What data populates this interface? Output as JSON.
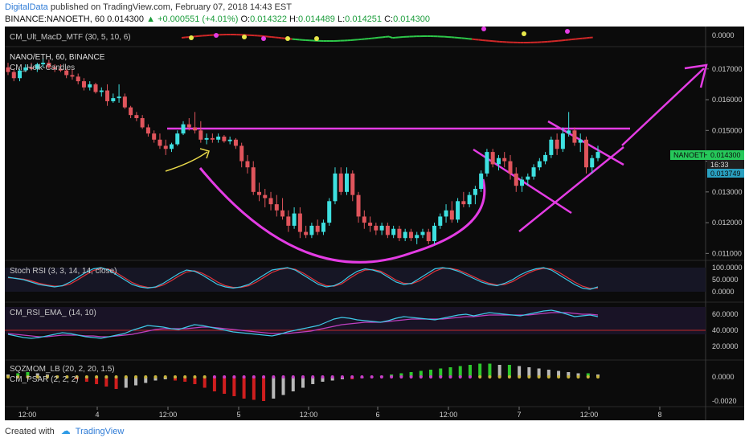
{
  "header": {
    "author": "DigitalData",
    "published": " published on TradingView.com, February 07, 2018 14:43 EST",
    "symbol": "BINANCE:NANOETH, 60",
    "last": "0.014300",
    "change_arrow": "▲",
    "change": "+0.000551 (+4.01%)",
    "o_label": "O:",
    "o_value": "0.014322",
    "h_label": "H:",
    "h_value": "0.014489",
    "l_label": "L:",
    "l_value": "0.014251",
    "c_label": "C:",
    "c_value": "0.014300"
  },
  "footer": {
    "created_with": "Created with",
    "brand": "TradingView"
  },
  "colors": {
    "background": "#0b0b0b",
    "candle_up": "#3ee0e0",
    "candle_down": "#e0555c",
    "drawing": "#e43ce4",
    "arrow_yellow": "#e8d84a",
    "stoch_k": "#3ec8e6",
    "stoch_d": "#e0343c",
    "rsi_line": "#3ec8e6",
    "rsi_ema": "#c040c0",
    "price_label": "#26c85a"
  },
  "panes": {
    "macd": {
      "label": "CM_Ult_MacD_MTF (30, 5, 10, 6)",
      "axis_ticks": [
        "0.0000"
      ]
    },
    "price": {
      "label": "NANO/ETH, 60, BINANCE",
      "sublabel": "CM_Heik-Candles",
      "axis_ticks": [
        "0.017000",
        "0.016000",
        "0.015000",
        "0.014000",
        "0.013000",
        "0.012000",
        "0.011000"
      ],
      "price_tag": "NANOETH",
      "price_tag_value": "0.014300",
      "countdown": "16:33",
      "level_tag": "0.013749"
    },
    "stoch": {
      "label": "Stoch RSI (3, 3, 14, 14, close)",
      "axis_ticks": [
        "100.0000",
        "50.0000",
        "0.0000"
      ]
    },
    "rsi": {
      "label": "CM_RSI_EMA_ (14, 10)",
      "axis_ticks": [
        "60.0000",
        "40.0000",
        "20.0000"
      ]
    },
    "sqz": {
      "label": "SQZMOM_LB (20, 2, 20, 1.5)",
      "sublabel": "CM_PSAR (2, 2, 2)",
      "axis_ticks": [
        "0.0000",
        "-0.0020"
      ]
    }
  },
  "time_axis": [
    "12:00",
    "4",
    "12:00",
    "5",
    "12:00",
    "6",
    "12:00",
    "7",
    "12:00",
    "8"
  ],
  "chart_data": {
    "type": "candlestick",
    "symbol": "NANO/ETH",
    "interval": "60",
    "exchange": "BINANCE",
    "ylim": [
      0.0108,
      0.0177
    ],
    "candles": [
      [
        0.01705,
        0.0172,
        0.0168,
        0.0169
      ],
      [
        0.0169,
        0.017,
        0.0166,
        0.0167
      ],
      [
        0.0167,
        0.017,
        0.0166,
        0.01695
      ],
      [
        0.01695,
        0.01715,
        0.0169,
        0.01705
      ],
      [
        0.01705,
        0.0172,
        0.01695,
        0.017
      ],
      [
        0.017,
        0.0172,
        0.0169,
        0.01715
      ],
      [
        0.01715,
        0.01735,
        0.01705,
        0.0172
      ],
      [
        0.0172,
        0.0173,
        0.017,
        0.01705
      ],
      [
        0.01705,
        0.01715,
        0.0169,
        0.017
      ],
      [
        0.017,
        0.01715,
        0.0169,
        0.01695
      ],
      [
        0.01695,
        0.017,
        0.0167,
        0.0168
      ],
      [
        0.0168,
        0.017,
        0.01665,
        0.01675
      ],
      [
        0.01675,
        0.01685,
        0.0165,
        0.0166
      ],
      [
        0.0166,
        0.0167,
        0.0163,
        0.0164
      ],
      [
        0.0164,
        0.0166,
        0.0163,
        0.0165
      ],
      [
        0.0165,
        0.01655,
        0.0162,
        0.01625
      ],
      [
        0.01625,
        0.0164,
        0.0161,
        0.0163
      ],
      [
        0.0163,
        0.0165,
        0.0158,
        0.01595
      ],
      [
        0.01595,
        0.0162,
        0.0159,
        0.01605
      ],
      [
        0.01605,
        0.0165,
        0.0159,
        0.0161
      ],
      [
        0.0161,
        0.0162,
        0.0157,
        0.01575
      ],
      [
        0.01575,
        0.0158,
        0.0154,
        0.0155
      ],
      [
        0.0155,
        0.0156,
        0.0153,
        0.0154
      ],
      [
        0.0154,
        0.0155,
        0.01505,
        0.0151
      ],
      [
        0.0151,
        0.0152,
        0.0148,
        0.0149
      ],
      [
        0.0149,
        0.015,
        0.0146,
        0.0147
      ],
      [
        0.0147,
        0.0149,
        0.0144,
        0.0145
      ],
      [
        0.0145,
        0.0147,
        0.0142,
        0.0144
      ],
      [
        0.0144,
        0.0146,
        0.0143,
        0.01455
      ],
      [
        0.01455,
        0.015,
        0.0145,
        0.0149
      ],
      [
        0.0149,
        0.0153,
        0.01485,
        0.0152
      ],
      [
        0.0152,
        0.0154,
        0.015,
        0.0151
      ],
      [
        0.0151,
        0.0156,
        0.0149,
        0.015
      ],
      [
        0.015,
        0.0153,
        0.0146,
        0.0147
      ],
      [
        0.0147,
        0.0149,
        0.01455,
        0.01475
      ],
      [
        0.01475,
        0.0149,
        0.0146,
        0.0147
      ],
      [
        0.0147,
        0.0149,
        0.0146,
        0.0148
      ],
      [
        0.0148,
        0.01485,
        0.0146,
        0.01465
      ],
      [
        0.01465,
        0.0148,
        0.01455,
        0.0147
      ],
      [
        0.0147,
        0.01475,
        0.0144,
        0.0145
      ],
      [
        0.0145,
        0.0146,
        0.0138,
        0.014
      ],
      [
        0.014,
        0.0142,
        0.0136,
        0.0138
      ],
      [
        0.0138,
        0.014,
        0.0129,
        0.013
      ],
      [
        0.013,
        0.0133,
        0.0127,
        0.0129
      ],
      [
        0.0129,
        0.0131,
        0.0125,
        0.0128
      ],
      [
        0.0128,
        0.013,
        0.0124,
        0.0126
      ],
      [
        0.0126,
        0.0129,
        0.0122,
        0.0124
      ],
      [
        0.0124,
        0.0128,
        0.0121,
        0.0122
      ],
      [
        0.0122,
        0.0124,
        0.0117,
        0.0119
      ],
      [
        0.0119,
        0.0125,
        0.0118,
        0.0123
      ],
      [
        0.0123,
        0.0125,
        0.0115,
        0.0117
      ],
      [
        0.0117,
        0.0119,
        0.0115,
        0.0116
      ],
      [
        0.0116,
        0.012,
        0.0115,
        0.0119
      ],
      [
        0.0119,
        0.0121,
        0.0116,
        0.0117
      ],
      [
        0.0117,
        0.0121,
        0.0116,
        0.012
      ],
      [
        0.012,
        0.0128,
        0.0119,
        0.0127
      ],
      [
        0.0127,
        0.0138,
        0.0126,
        0.0136
      ],
      [
        0.0136,
        0.0138,
        0.0129,
        0.013
      ],
      [
        0.013,
        0.0138,
        0.0129,
        0.0136
      ],
      [
        0.0136,
        0.0137,
        0.0127,
        0.0129
      ],
      [
        0.0129,
        0.013,
        0.012,
        0.0122
      ],
      [
        0.0122,
        0.0124,
        0.0118,
        0.012
      ],
      [
        0.012,
        0.0122,
        0.0117,
        0.0119
      ],
      [
        0.0119,
        0.012,
        0.0116,
        0.01175
      ],
      [
        0.01175,
        0.012,
        0.0116,
        0.0119
      ],
      [
        0.0119,
        0.012,
        0.0115,
        0.0116
      ],
      [
        0.0116,
        0.0119,
        0.0115,
        0.0118
      ],
      [
        0.0118,
        0.0119,
        0.0114,
        0.0115
      ],
      [
        0.0115,
        0.0118,
        0.0114,
        0.0117
      ],
      [
        0.0117,
        0.0118,
        0.0114,
        0.0115
      ],
      [
        0.0115,
        0.0117,
        0.0113,
        0.0116
      ],
      [
        0.0116,
        0.0118,
        0.0115,
        0.0117
      ],
      [
        0.0117,
        0.0118,
        0.0113,
        0.0114
      ],
      [
        0.0114,
        0.012,
        0.0113,
        0.0119
      ],
      [
        0.0119,
        0.0123,
        0.0118,
        0.0122
      ],
      [
        0.0122,
        0.0126,
        0.012,
        0.0124
      ],
      [
        0.0124,
        0.0127,
        0.012,
        0.0121
      ],
      [
        0.0121,
        0.0128,
        0.012,
        0.0127
      ],
      [
        0.0127,
        0.013,
        0.0125,
        0.0126
      ],
      [
        0.0126,
        0.013,
        0.0125,
        0.0129
      ],
      [
        0.0129,
        0.0132,
        0.0126,
        0.0131
      ],
      [
        0.0131,
        0.0137,
        0.013,
        0.0136
      ],
      [
        0.0136,
        0.0144,
        0.0135,
        0.0143
      ],
      [
        0.0143,
        0.0144,
        0.0138,
        0.0139
      ],
      [
        0.0139,
        0.0142,
        0.0137,
        0.0141
      ],
      [
        0.0141,
        0.0143,
        0.0138,
        0.014
      ],
      [
        0.014,
        0.0142,
        0.0134,
        0.0136
      ],
      [
        0.0136,
        0.0138,
        0.013,
        0.0132
      ],
      [
        0.0132,
        0.0135,
        0.013,
        0.0134
      ],
      [
        0.0134,
        0.0136,
        0.0132,
        0.0135
      ],
      [
        0.0135,
        0.0139,
        0.0134,
        0.0138
      ],
      [
        0.0138,
        0.0141,
        0.0137,
        0.014
      ],
      [
        0.014,
        0.0143,
        0.0139,
        0.0142
      ],
      [
        0.0142,
        0.0148,
        0.0141,
        0.0147
      ],
      [
        0.0147,
        0.0149,
        0.0142,
        0.0144
      ],
      [
        0.0144,
        0.0151,
        0.0143,
        0.0149
      ],
      [
        0.0149,
        0.0156,
        0.0148,
        0.015
      ],
      [
        0.015,
        0.0151,
        0.0145,
        0.0146
      ],
      [
        0.0146,
        0.0149,
        0.0143,
        0.0147
      ],
      [
        0.0147,
        0.0148,
        0.0136,
        0.0138
      ],
      [
        0.0138,
        0.0142,
        0.0136,
        0.0141
      ],
      [
        0.0141,
        0.0145,
        0.014,
        0.0143
      ]
    ],
    "stoch_k": [
      60,
      55,
      50,
      40,
      30,
      25,
      20,
      25,
      40,
      60,
      80,
      95,
      100,
      90,
      70,
      50,
      30,
      20,
      15,
      20,
      35,
      55,
      75,
      90,
      85,
      70,
      50,
      30,
      20,
      15,
      20,
      30,
      50,
      70,
      90,
      95,
      100,
      90,
      70,
      50,
      30,
      20,
      25,
      40,
      65,
      85,
      95,
      90,
      80,
      60,
      40,
      30,
      35,
      55,
      75,
      95,
      100,
      95,
      85,
      70,
      55,
      40,
      30,
      25,
      35,
      50,
      70,
      85,
      95,
      100,
      90,
      70,
      50,
      30,
      15,
      10,
      20
    ],
    "stoch_d": [
      58,
      56,
      52,
      45,
      35,
      28,
      23,
      24,
      32,
      50,
      70,
      88,
      97,
      93,
      78,
      58,
      38,
      25,
      18,
      18,
      28,
      45,
      65,
      82,
      87,
      77,
      60,
      40,
      25,
      18,
      18,
      25,
      40,
      60,
      80,
      92,
      98,
      93,
      78,
      58,
      38,
      25,
      23,
      33,
      55,
      75,
      90,
      92,
      85,
      68,
      48,
      35,
      33,
      45,
      65,
      85,
      97,
      97,
      90,
      77,
      62,
      47,
      35,
      28,
      30,
      42,
      60,
      77,
      90,
      97,
      95,
      80,
      60,
      40,
      23,
      14,
      15
    ],
    "rsi": [
      35,
      33,
      31,
      30,
      31,
      33,
      35,
      37,
      36,
      34,
      32,
      31,
      30,
      32,
      34,
      36,
      40,
      43,
      46,
      45,
      44,
      42,
      41,
      44,
      47,
      46,
      44,
      42,
      40,
      38,
      37,
      36,
      35,
      34,
      33,
      35,
      38,
      40,
      42,
      44,
      46,
      50,
      54,
      56,
      55,
      53,
      52,
      51,
      50,
      52,
      55,
      57,
      56,
      55,
      54,
      53,
      55,
      57,
      59,
      60,
      58,
      60,
      62,
      61,
      60,
      59,
      58,
      60,
      62,
      64,
      65,
      63,
      60,
      57,
      58,
      59,
      57
    ],
    "rsi_ema": [
      36,
      35,
      34,
      33,
      32,
      32,
      33,
      34,
      34,
      34,
      33,
      33,
      32,
      32,
      33,
      34,
      35,
      37,
      39,
      41,
      42,
      42,
      42,
      42,
      43,
      44,
      44,
      43,
      42,
      41,
      40,
      39,
      38,
      37,
      36,
      36,
      36,
      37,
      38,
      39,
      41,
      43,
      45,
      47,
      48,
      49,
      50,
      50,
      50,
      51,
      52,
      53,
      54,
      54,
      54,
      54,
      54,
      55,
      56,
      57,
      57,
      58,
      59,
      59,
      59,
      59,
      59,
      59,
      60,
      61,
      62,
      62,
      62,
      61,
      60,
      60,
      59
    ],
    "sqzmom": [
      0.0002,
      0.0003,
      0.0004,
      0.0003,
      0.0002,
      0.0001,
      0.0,
      -0.0002,
      -0.0004,
      -0.0006,
      -0.0008,
      -0.001,
      -0.0009,
      -0.0007,
      -0.0005,
      -0.0003,
      -0.0002,
      -0.0003,
      -0.0004,
      -0.0006,
      -0.0009,
      -0.0012,
      -0.0014,
      -0.0016,
      -0.0018,
      -0.0019,
      -0.002,
      -0.0018,
      -0.0015,
      -0.0012,
      -0.0009,
      -0.0006,
      -0.0004,
      -0.0003,
      -0.0002,
      -0.0002,
      -0.0001,
      0.0,
      0.0001,
      0.0002,
      0.0003,
      0.0004,
      0.0005,
      0.0006,
      0.0007,
      0.0008,
      0.0009,
      0.001,
      0.0011,
      0.0011,
      0.001,
      0.001,
      0.0009,
      0.0008,
      0.0007,
      0.0006,
      0.0005,
      0.0004,
      0.0003,
      0.0003,
      0.0002
    ]
  }
}
